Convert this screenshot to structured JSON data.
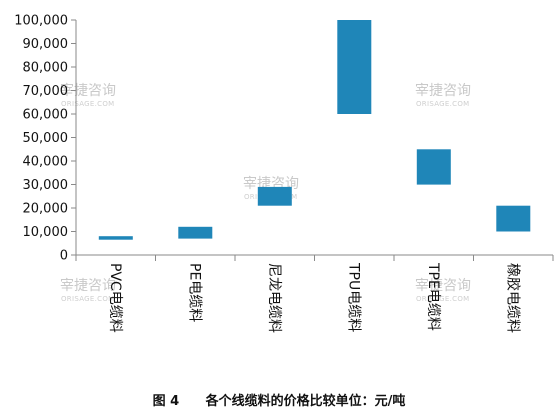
{
  "chart_data": {
    "type": "bar",
    "subtype": "floating-range",
    "categories": [
      "PVC电缆料",
      "PE电缆料",
      "尼龙电缆料",
      "TPU电缆料",
      "TPE电缆料",
      "橡胶电缆料"
    ],
    "ranges": [
      [
        6500,
        8000
      ],
      [
        7000,
        12000
      ],
      [
        21000,
        29000
      ],
      [
        60000,
        100000
      ],
      [
        30000,
        45000
      ],
      [
        10000,
        21000
      ]
    ],
    "ylim": [
      0,
      100000
    ],
    "yticks": [
      0,
      10000,
      20000,
      30000,
      40000,
      50000,
      60000,
      70000,
      80000,
      90000,
      100000
    ],
    "ytick_labels": [
      "0",
      "10,000",
      "20,000",
      "30,000",
      "40,000",
      "50,000",
      "60,000",
      "70,000",
      "80,000",
      "90,000",
      "100,000"
    ],
    "grid": false,
    "bar_color": "#1f86b8",
    "caption": {
      "figure_number": "图 4",
      "text": "各个线缆料的价格比较单位：元/吨"
    }
  },
  "watermark": {
    "text": "宰捷咨询",
    "subtext": "ORISAGE.COM"
  }
}
